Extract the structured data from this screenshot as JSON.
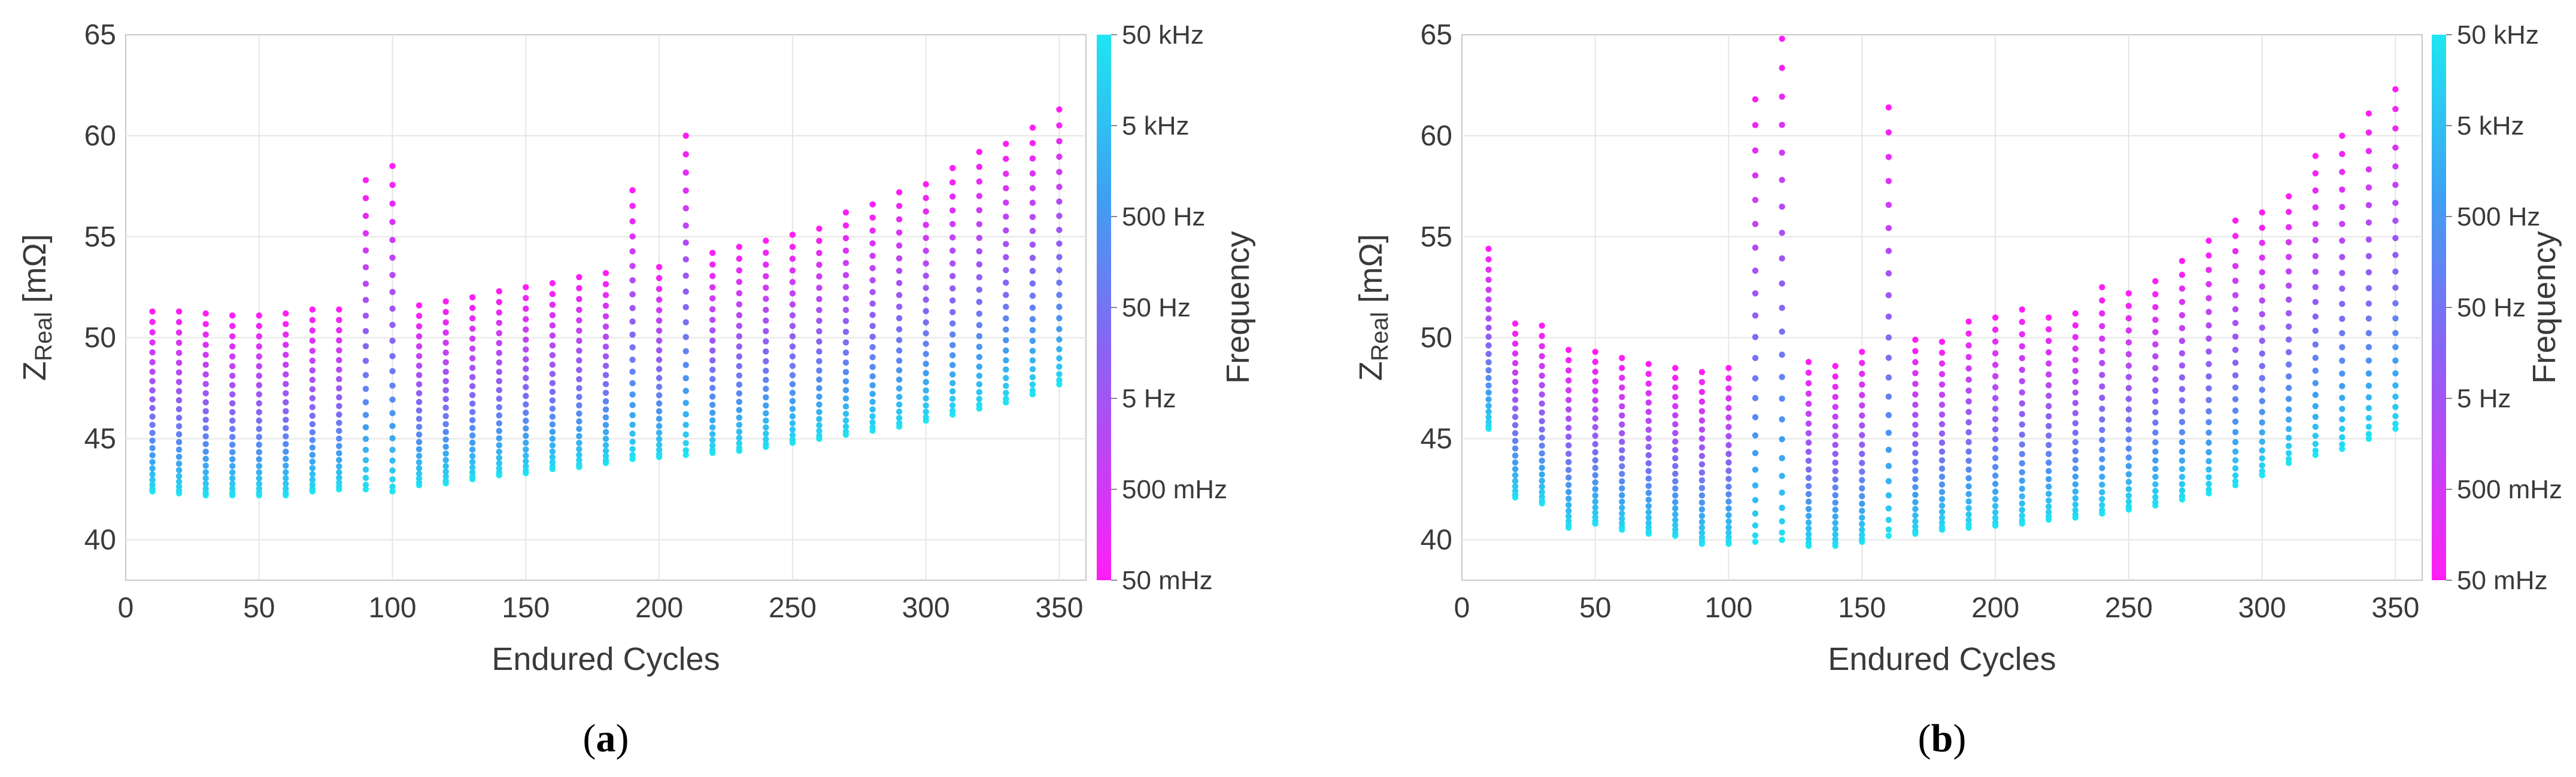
{
  "colors": {
    "high": "#1ee6f2",
    "mid": "#3f9ff2",
    "midlow": "#8a63f4",
    "low": "#ff1ef5"
  },
  "colorbar": {
    "title": "Frequency",
    "labels": [
      "50 kHz",
      "5 kHz",
      "500 Hz",
      "50 Hz",
      "5 Hz",
      "500 mHz",
      "50 mHz"
    ]
  },
  "chart_data": [
    {
      "type": "scatter",
      "panel": "a",
      "caption_letter": "a",
      "title": "",
      "xlabel": "Endured Cycles",
      "ylabel_main": "Z",
      "ylabel_sub": "Real",
      "ylabel_unit": " [mΩ]",
      "xlim": [
        0,
        360
      ],
      "ylim": [
        38,
        65
      ],
      "xticks": [
        "0",
        "50",
        "100",
        "150",
        "200",
        "250",
        "300",
        "350"
      ],
      "yticks": [
        "40",
        "45",
        "50",
        "55",
        "60",
        "65"
      ],
      "color_encoding": "Frequency (log scale, 50 mHz to 50 kHz)",
      "cycles": [
        10,
        20,
        30,
        40,
        50,
        60,
        70,
        80,
        90,
        100,
        110,
        120,
        130,
        140,
        150,
        160,
        170,
        180,
        190,
        200,
        210,
        220,
        230,
        240,
        250,
        260,
        270,
        280,
        290,
        300,
        310,
        320,
        330,
        340,
        350
      ],
      "z_min_mohm": [
        42.4,
        42.3,
        42.2,
        42.2,
        42.2,
        42.2,
        42.4,
        42.5,
        42.5,
        42.4,
        42.7,
        42.8,
        43.0,
        43.2,
        43.3,
        43.5,
        43.6,
        43.8,
        44.0,
        44.1,
        44.2,
        44.3,
        44.4,
        44.6,
        44.8,
        45.0,
        45.2,
        45.4,
        45.6,
        45.9,
        46.2,
        46.5,
        46.8,
        47.2,
        47.7
      ],
      "z_max_mohm": [
        51.3,
        51.3,
        51.2,
        51.1,
        51.1,
        51.2,
        51.4,
        51.4,
        57.8,
        58.5,
        51.6,
        51.8,
        52.0,
        52.3,
        52.5,
        52.7,
        53.0,
        53.2,
        57.3,
        53.5,
        60.0,
        54.2,
        54.5,
        54.8,
        55.1,
        55.4,
        56.2,
        56.6,
        57.2,
        57.6,
        58.4,
        59.2,
        59.6,
        60.4,
        61.3
      ]
    },
    {
      "type": "scatter",
      "panel": "b",
      "caption_letter": "b",
      "title": "",
      "xlabel": "Endured Cycles",
      "ylabel_main": "Z",
      "ylabel_sub": "Real",
      "ylabel_unit": " [mΩ]",
      "xlim": [
        0,
        360
      ],
      "ylim": [
        38,
        65
      ],
      "xticks": [
        "0",
        "50",
        "100",
        "150",
        "200",
        "250",
        "300",
        "350"
      ],
      "yticks": [
        "40",
        "45",
        "50",
        "55",
        "60",
        "65"
      ],
      "color_encoding": "Frequency (log scale, 50 mHz to 50 kHz)",
      "cycles": [
        10,
        20,
        30,
        40,
        50,
        60,
        70,
        80,
        90,
        100,
        110,
        120,
        130,
        140,
        150,
        160,
        170,
        180,
        190,
        200,
        210,
        220,
        230,
        240,
        250,
        260,
        270,
        280,
        290,
        300,
        310,
        320,
        330,
        340,
        350
      ],
      "z_min_mohm": [
        45.5,
        42.1,
        41.8,
        40.6,
        40.8,
        40.5,
        40.3,
        40.2,
        39.8,
        39.8,
        39.9,
        40.0,
        39.7,
        39.7,
        39.9,
        40.2,
        40.3,
        40.5,
        40.6,
        40.7,
        40.8,
        41.0,
        41.1,
        41.3,
        41.5,
        41.7,
        42.0,
        42.3,
        42.7,
        43.2,
        43.8,
        44.2,
        44.5,
        45.0,
        45.5
      ],
      "z_max_mohm": [
        54.4,
        50.7,
        50.6,
        49.4,
        49.3,
        49.0,
        48.7,
        48.5,
        48.3,
        48.5,
        61.8,
        64.8,
        48.8,
        48.6,
        49.3,
        61.4,
        49.9,
        49.8,
        50.8,
        51.0,
        51.4,
        51.0,
        51.2,
        52.5,
        52.2,
        52.8,
        53.8,
        54.8,
        55.8,
        56.2,
        57.0,
        59.0,
        60.0,
        61.1,
        62.3
      ]
    }
  ]
}
